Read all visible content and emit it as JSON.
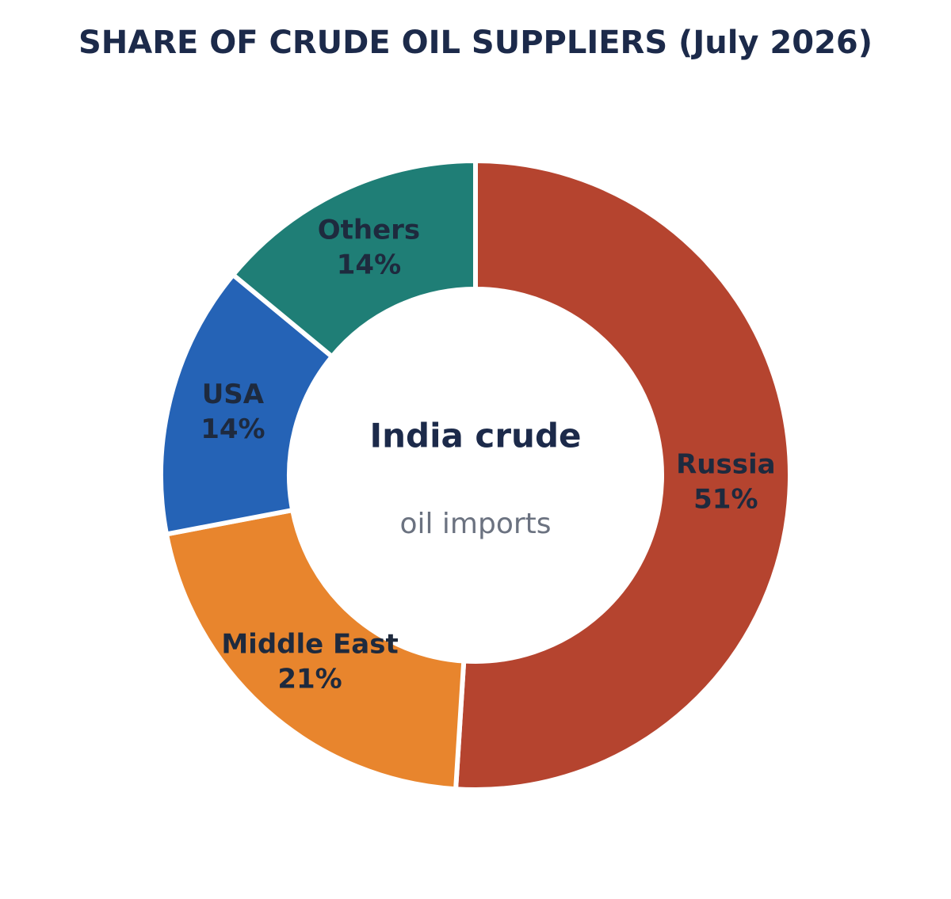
{
  "chart_data": {
    "type": "donut",
    "title": "SHARE OF CRUDE OIL SUPPLIERS (July 2026)",
    "center_text": "India crude",
    "center_subtext": "oil imports",
    "categories": [
      "Russia",
      "Middle East",
      "USA",
      "Others"
    ],
    "values": [
      51,
      21,
      14,
      14
    ],
    "value_labels": [
      "51%",
      "21%",
      "14%",
      "14%"
    ],
    "colors": [
      "#b5442f",
      "#e8852d",
      "#2563b6",
      "#1f7e76"
    ]
  }
}
